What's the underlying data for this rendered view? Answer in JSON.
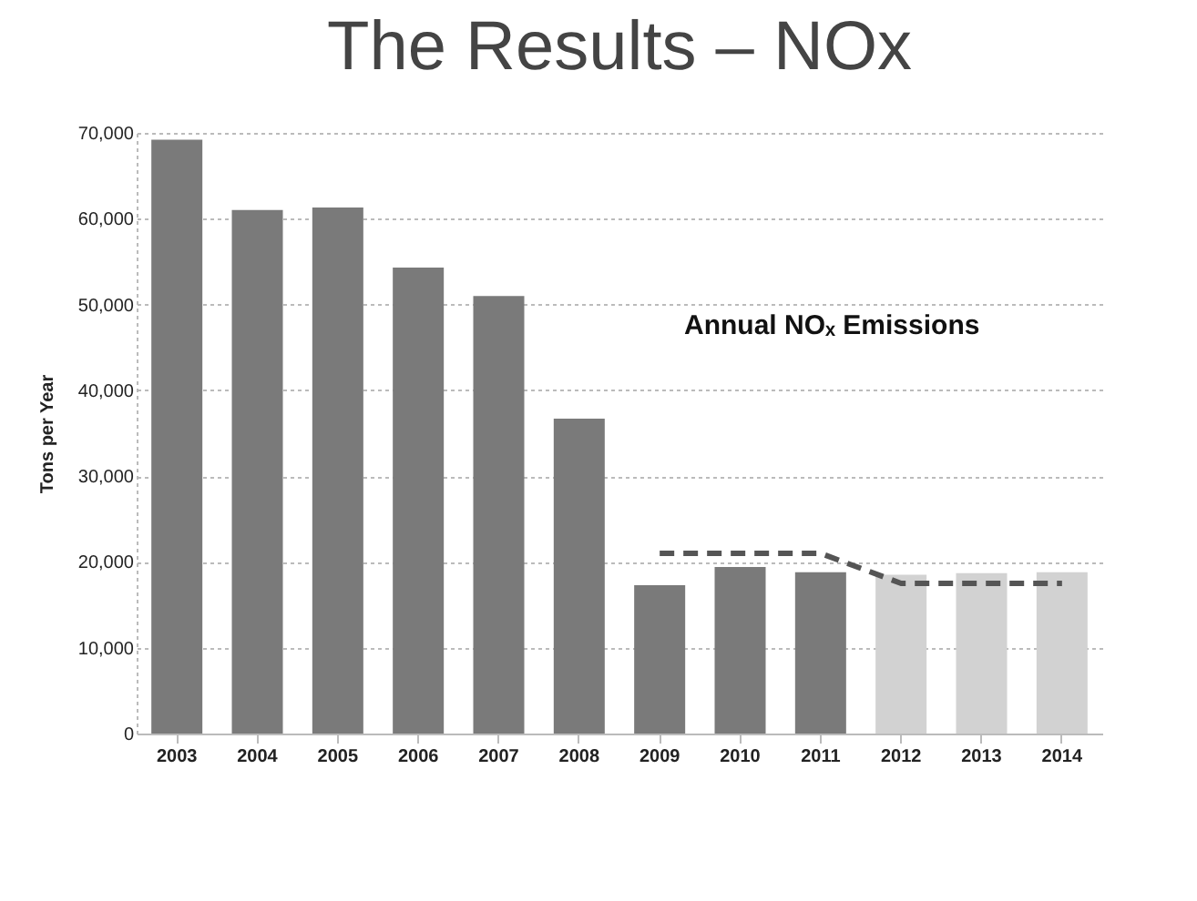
{
  "chart_data": {
    "type": "bar",
    "title": "The Results – NOx",
    "ylabel": "Tons per Year",
    "categories": [
      "2003",
      "2004",
      "2005",
      "2006",
      "2007",
      "2008",
      "2009",
      "2010",
      "2011",
      "2012",
      "2013",
      "2014"
    ],
    "series": [
      {
        "colors": [
          "#7a7a7a",
          "#7a7a7a",
          "#7a7a7a",
          "#7a7a7a",
          "#7a7a7a",
          "#7a7a7a",
          "#7a7a7a",
          "#7a7a7a",
          "#7a7a7a",
          "#d2d2d2",
          "#d2d2d2",
          "#d2d2d2"
        ],
        "values": [
          69200,
          61000,
          61300,
          54300,
          51000,
          36700,
          17300,
          19400,
          18800,
          18500,
          18700,
          18800
        ]
      },
      {
        "type": "line",
        "color": "#555555",
        "line_style": "dashed",
        "values": [
          null,
          null,
          null,
          null,
          null,
          null,
          21000,
          21000,
          21000,
          17500,
          17500,
          17500
        ]
      }
    ],
    "ylim": [
      0,
      70000
    ],
    "yticks": [
      0,
      {
        "value": 10000,
        "label": "10,000"
      },
      {
        "value": 20000,
        "label": "20,000"
      },
      {
        "value": 30000,
        "label": "30,000"
      },
      {
        "value": 40000,
        "label": "40,000"
      },
      {
        "value": 50000,
        "label": "50,000"
      },
      {
        "value": 60000,
        "label": "60,000"
      },
      {
        "value": 70000,
        "label": "70,000"
      }
    ],
    "grid": "y",
    "annotations": [
      "Annual NOₓ Emissions"
    ]
  }
}
